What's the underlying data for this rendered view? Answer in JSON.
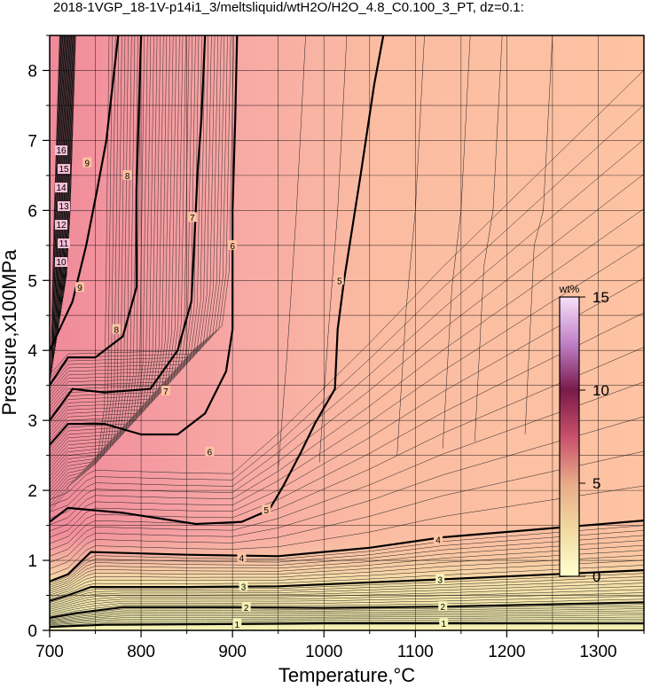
{
  "chart_data": {
    "type": "heatmap",
    "title": "2018-1VGP_18-1V-p14i1_3/meltsliquid/wtH2O/H2O_4.8_C0.100_3_PT, dz=0.1:",
    "xlabel": "Temperature,°C",
    "ylabel": "Pressure,x100MPa",
    "xlim": [
      700,
      1350
    ],
    "ylim": [
      0,
      8.5
    ],
    "x_ticks": [
      "700",
      "800",
      "900",
      "1000",
      "1100",
      "1200",
      "1300"
    ],
    "y_ticks": [
      "0",
      "1",
      "2",
      "3",
      "4",
      "5",
      "6",
      "7",
      "8"
    ],
    "grid": true,
    "colorbar": {
      "label": "wt%",
      "range": [
        0,
        15
      ],
      "ticks": [
        "0",
        "5",
        "10",
        "15"
      ],
      "colors": [
        "#ffffd0",
        "#f2d9a0",
        "#e8aa88",
        "#c8506a",
        "#7a1a4a",
        "#c080c8",
        "#f8e0f8"
      ],
      "placement": "right-inside"
    },
    "background_color": "#fdc0a0",
    "contours": [
      {
        "level": 1,
        "points": [
          [
            700,
            0.05
          ],
          [
            720,
            0.06
          ],
          [
            760,
            0.08
          ],
          [
            900,
            0.09
          ],
          [
            1000,
            0.1
          ],
          [
            1130,
            0.1
          ],
          [
            1350,
            0.1
          ]
        ],
        "labels": [
          [
            905,
            0.09
          ],
          [
            1131,
            0.1
          ]
        ]
      },
      {
        "level": 2,
        "points": [
          [
            700,
            0.18
          ],
          [
            730,
            0.25
          ],
          [
            780,
            0.33
          ],
          [
            900,
            0.33
          ],
          [
            1000,
            0.32
          ],
          [
            1130,
            0.34
          ],
          [
            1350,
            0.4
          ]
        ],
        "labels": [
          [
            915,
            0.33
          ],
          [
            1130,
            0.34
          ]
        ]
      },
      {
        "level": 3,
        "points": [
          [
            700,
            0.42
          ],
          [
            720,
            0.5
          ],
          [
            745,
            0.62
          ],
          [
            850,
            0.62
          ],
          [
            950,
            0.63
          ],
          [
            1130,
            0.73
          ],
          [
            1350,
            0.86
          ]
        ],
        "labels": [
          [
            912,
            0.63
          ],
          [
            1127,
            0.73
          ]
        ]
      },
      {
        "level": 4,
        "points": [
          [
            700,
            0.7
          ],
          [
            720,
            0.8
          ],
          [
            745,
            1.12
          ],
          [
            850,
            1.08
          ],
          [
            950,
            1.06
          ],
          [
            1050,
            1.18
          ],
          [
            1130,
            1.33
          ],
          [
            1350,
            1.57
          ]
        ],
        "labels": [
          [
            910,
            1.04
          ],
          [
            1125,
            1.3
          ]
        ]
      },
      {
        "level": 5,
        "points": [
          [
            700,
            1.55
          ],
          [
            720,
            1.75
          ],
          [
            780,
            1.68
          ],
          [
            860,
            1.52
          ],
          [
            910,
            1.55
          ],
          [
            940,
            1.72
          ],
          [
            955,
            2.05
          ],
          [
            975,
            2.55
          ],
          [
            990,
            2.95
          ],
          [
            1012,
            3.45
          ],
          [
            1015,
            4.3
          ],
          [
            1022,
            5.0
          ],
          [
            1040,
            6.5
          ],
          [
            1055,
            7.8
          ],
          [
            1065,
            8.5
          ]
        ],
        "labels": [
          [
            937,
            1.72
          ],
          [
            1017,
            5.0
          ]
        ]
      },
      {
        "level": 6,
        "points": [
          [
            700,
            2.65
          ],
          [
            720,
            2.95
          ],
          [
            760,
            2.95
          ],
          [
            800,
            2.8
          ],
          [
            840,
            2.8
          ],
          [
            870,
            3.1
          ],
          [
            893,
            3.7
          ],
          [
            900,
            4.3
          ],
          [
            900,
            6.0
          ],
          [
            903,
            7.3
          ],
          [
            905,
            8.5
          ]
        ],
        "labels": [
          [
            875,
            2.55
          ],
          [
            900,
            5.5
          ]
        ]
      },
      {
        "level": 7,
        "points": [
          [
            700,
            3.0
          ],
          [
            725,
            3.45
          ],
          [
            760,
            3.4
          ],
          [
            810,
            3.45
          ],
          [
            840,
            4.0
          ],
          [
            855,
            4.7
          ],
          [
            858,
            5.5
          ],
          [
            862,
            6.6
          ],
          [
            866,
            7.3
          ],
          [
            870,
            8.5
          ]
        ],
        "labels": [
          [
            827,
            3.42
          ],
          [
            856,
            5.9
          ]
        ]
      },
      {
        "level": 8,
        "points": [
          [
            700,
            3.5
          ],
          [
            720,
            3.9
          ],
          [
            750,
            3.9
          ],
          [
            780,
            4.2
          ],
          [
            795,
            4.9
          ],
          [
            795,
            6.3
          ],
          [
            797,
            7.2
          ],
          [
            800,
            8.5
          ]
        ],
        "labels": [
          [
            773,
            4.3
          ],
          [
            785,
            6.5
          ]
        ]
      },
      {
        "level": 9,
        "points": [
          [
            700,
            4.0
          ],
          [
            725,
            4.7
          ],
          [
            740,
            5.5
          ],
          [
            752,
            6.3
          ],
          [
            762,
            7.0
          ],
          [
            775,
            8.5
          ]
        ],
        "labels": [
          [
            733,
            4.9
          ],
          [
            741,
            6.68
          ]
        ]
      }
    ],
    "steep_labels": [
      "10",
      "11",
      "12",
      "13",
      "14",
      "15",
      "16"
    ]
  }
}
